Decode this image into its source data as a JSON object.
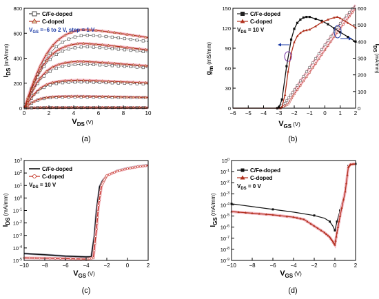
{
  "chart_data": [
    {
      "id": "a",
      "type": "line",
      "caption": "(a)",
      "xlabel_main": "V",
      "xlabel_sub": "DS",
      "xlabel_unit": "(V)",
      "ylabel_main": "I",
      "ylabel_sub": "DS",
      "ylabel_unit": "(mA/mm)",
      "xlim": [
        0,
        10
      ],
      "ylim": [
        0,
        800
      ],
      "xticks": [
        "0",
        "2",
        "4",
        "6",
        "8",
        "10"
      ],
      "yticks": [
        "0",
        "200",
        "400",
        "600",
        "800"
      ],
      "legend": [
        "C/Fe-doped",
        "C-doped"
      ],
      "annotation": {
        "main": "V",
        "sub": "GS",
        "rest": " =−6 to 2 V, step = 1 V"
      },
      "sat_current_c_fe": [
        5,
        90,
        210,
        355,
        500,
        600
      ],
      "sat_current_c": [
        5,
        95,
        225,
        380,
        530,
        650
      ],
      "vg_values": [
        "-4",
        "-3",
        "-2",
        "-1",
        "0",
        "1"
      ],
      "colors": {
        "c_fe": "#444444",
        "c": "#b0301c",
        "c_fill": "#d8c7a0",
        "glow": "#f4b8c4",
        "annot": "#1a3aa6"
      }
    },
    {
      "id": "b",
      "type": "line",
      "caption": "(b)",
      "xlabel_main": "V",
      "xlabel_sub": "GS",
      "xlabel_unit": "(V)",
      "ylabel_left_main": "g",
      "ylabel_left_sub": "m",
      "ylabel_left_unit": "(mS/mm)",
      "ylabel_right_main": "I",
      "ylabel_right_sub": "DS",
      "ylabel_right_unit": "(mA/mm)",
      "xlim": [
        -6,
        2
      ],
      "ylim_left": [
        0,
        150
      ],
      "ylim_right": [
        0,
        600
      ],
      "xticks": [
        "−6",
        "−5",
        "−4",
        "−3",
        "−2",
        "−1",
        "0",
        "1",
        "2"
      ],
      "yticks_left": [
        "0",
        "30",
        "60",
        "90",
        "120",
        "150"
      ],
      "yticks_right": [
        "0",
        "100",
        "200",
        "300",
        "400",
        "500",
        "600"
      ],
      "legend": [
        "C/Fe-doped",
        "C-doped"
      ],
      "annotation": {
        "main": "V",
        "sub": "DS",
        "rest": " = 10 V"
      },
      "series": [
        {
          "name": "C/Fe-doped",
          "x": [
            -3.1,
            -3.0,
            -2.8,
            -2.5,
            -2.2,
            -2.0,
            -1.8,
            -1.6,
            -1.4,
            -1.2,
            -1.0,
            -0.6,
            -0.2,
            0.2,
            0.6,
            1.0,
            1.5,
            2.0
          ],
          "values": [
            0,
            1,
            13,
            63,
            103,
            119,
            128,
            133,
            136,
            137,
            137,
            134,
            131,
            126,
            120,
            114,
            107,
            100
          ]
        },
        {
          "name": "C-doped",
          "x": [
            -2.9,
            -2.8,
            -2.6,
            -2.4,
            -2.2,
            -2.0,
            -1.8,
            -1.6,
            -1.4,
            -1.2,
            -1.0,
            -0.6,
            -0.2,
            0.2,
            0.6,
            0.8,
            1.0,
            1.5,
            2.0
          ],
          "values": [
            0,
            2,
            20,
            55,
            82,
            99,
            108,
            113,
            116,
            117,
            118,
            123,
            129,
            133,
            136,
            137,
            135,
            128,
            121
          ]
        }
      ],
      "ids_series": [
        {
          "name": "C/Fe-doped",
          "x": [
            -3.1,
            -2.6,
            -2.0,
            -1.0,
            0.0,
            1.0,
            2.0
          ],
          "values": [
            0,
            30,
            110,
            245,
            380,
            510,
            620
          ]
        },
        {
          "name": "C-doped",
          "x": [
            -2.9,
            -2.4,
            -2.0,
            -1.0,
            0.0,
            1.0,
            2.0
          ],
          "values": [
            0,
            25,
            85,
            215,
            350,
            480,
            600
          ]
        }
      ]
    },
    {
      "id": "c",
      "type": "line",
      "caption": "(c)",
      "xlabel_main": "V",
      "xlabel_sub": "GS",
      "xlabel_unit": "(V)",
      "ylabel_main": "I",
      "ylabel_sub": "DS",
      "ylabel_unit": "(mA/mm)",
      "scale_y": "log",
      "xlim": [
        -10,
        2
      ],
      "ylim_exp": [
        -5,
        3
      ],
      "xticks": [
        "−10",
        "−8",
        "−6",
        "−4",
        "−2",
        "0",
        "2"
      ],
      "yticks_exp": [
        "-5",
        "-4",
        "-3",
        "-2",
        "-1",
        "0",
        "1",
        "2",
        "3"
      ],
      "legend": [
        "C/Fe-doped",
        "C-doped"
      ],
      "annotation": {
        "main": "V",
        "sub": "DS",
        "rest": " = 10 V"
      },
      "series": [
        {
          "name": "C/Fe-doped",
          "x": [
            -10,
            -8,
            -6,
            -4,
            -3.5,
            -3.2,
            -3.0,
            -2.7,
            -2.4,
            -2.0,
            -1.0,
            0,
            1,
            2
          ],
          "log10_values": [
            -4.45,
            -4.55,
            -4.65,
            -4.72,
            -4.7,
            -3.0,
            -1.0,
            0.9,
            1.4,
            1.8,
            2.2,
            2.4,
            2.55,
            2.65
          ]
        },
        {
          "name": "C-doped",
          "x": [
            -10,
            -8,
            -6,
            -4,
            -3.3,
            -3.0,
            -2.8,
            -2.5,
            -2.2,
            -2.0,
            -1.0,
            0,
            1,
            2
          ],
          "log10_values": [
            -4.8,
            -4.82,
            -4.85,
            -4.9,
            -4.8,
            -2.5,
            -0.6,
            1.0,
            1.5,
            1.8,
            2.15,
            2.35,
            2.5,
            2.6
          ]
        }
      ]
    },
    {
      "id": "d",
      "type": "line",
      "caption": "(d)",
      "xlabel_main": "V",
      "xlabel_sub": "GS",
      "xlabel_unit": "(V)",
      "ylabel_main": "I",
      "ylabel_sub": "GS",
      "ylabel_unit": "(mA/mm)",
      "scale_y": "log",
      "xlim": [
        -10,
        2
      ],
      "ylim_exp": [
        -9,
        0
      ],
      "xticks": [
        "−10",
        "−8",
        "−6",
        "−4",
        "−2",
        "0",
        "2"
      ],
      "yticks_exp": [
        "-9",
        "-8",
        "-7",
        "-6",
        "-5",
        "-4",
        "-3",
        "-2",
        "-1",
        "0"
      ],
      "legend": [
        "C/Fe-doped",
        "C-doped"
      ],
      "annotation": {
        "main": "V",
        "sub": "DS",
        "rest": " = 0 V"
      },
      "series": [
        {
          "name": "C/Fe-doped",
          "x": [
            -10,
            -8,
            -6,
            -4,
            -2,
            -1,
            -0.5,
            -0.2,
            0,
            0.2,
            0.5,
            1.0,
            1.3,
            1.5,
            2.0
          ],
          "log10_values": [
            -3.9,
            -4.15,
            -4.4,
            -4.65,
            -4.95,
            -5.2,
            -5.5,
            -5.9,
            -6.3,
            -5.5,
            -4.5,
            -2.5,
            -0.5,
            -0.35,
            -0.3
          ]
        },
        {
          "name": "C-doped",
          "x": [
            -10,
            -8,
            -6,
            -4,
            -3,
            -2,
            -1,
            -0.5,
            -0.2,
            0,
            0.2,
            0.5,
            1.0,
            1.3,
            1.5,
            2.0
          ],
          "log10_values": [
            -4.6,
            -4.75,
            -4.9,
            -5.1,
            -5.3,
            -5.9,
            -6.5,
            -6.9,
            -7.3,
            -7.6,
            -6.5,
            -5.0,
            -2.8,
            -0.6,
            -0.35,
            -0.3
          ]
        }
      ]
    }
  ]
}
